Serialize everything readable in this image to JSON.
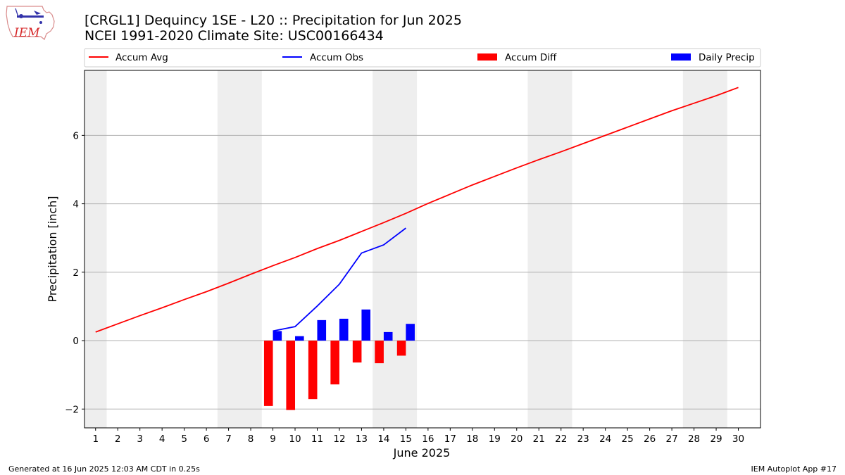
{
  "logo": {
    "text": "IEM",
    "brand_color": "#d62728"
  },
  "title_lines": [
    "[CRGL1] Dequincy 1SE - L20 :: Precipitation for Jun 2025",
    "NCEI 1991-2020 Climate Site: USC00166434"
  ],
  "footer": {
    "left": "Generated at 16 Jun 2025 12:03 AM CDT in 0.25s",
    "right": "IEM Autoplot App #17"
  },
  "chart_data": {
    "type": "bar",
    "title": "[CRGL1] Dequincy 1SE - L20 :: Precipitation for Jun 2025",
    "subtitle": "NCEI 1991-2020 Climate Site: USC00166434",
    "xlabel": "June 2025",
    "ylabel": "Precipitation [inch]",
    "xlim": [
      0.5,
      31.0
    ],
    "ylim": [
      -2.55,
      7.9
    ],
    "yticks": [
      -2,
      0,
      2,
      4,
      6
    ],
    "ytick_labels": [
      "−2",
      "0",
      "2",
      "4",
      "6"
    ],
    "x": [
      1,
      2,
      3,
      4,
      5,
      6,
      7,
      8,
      9,
      10,
      11,
      12,
      13,
      14,
      15,
      16,
      17,
      18,
      19,
      20,
      21,
      22,
      23,
      24,
      25,
      26,
      27,
      28,
      29,
      30
    ],
    "xtick_labels": [
      "1",
      "2",
      "3",
      "4",
      "5",
      "6",
      "7",
      "8",
      "9",
      "10",
      "11",
      "12",
      "13",
      "14",
      "15",
      "16",
      "17",
      "18",
      "19",
      "20",
      "21",
      "22",
      "23",
      "24",
      "25",
      "26",
      "27",
      "28",
      "29",
      "30"
    ],
    "grid": "horizontal",
    "legend_position": "top",
    "weekend_shading": [
      [
        0.5,
        1.5
      ],
      [
        6.5,
        8.5
      ],
      [
        13.5,
        15.5
      ],
      [
        20.5,
        22.5
      ],
      [
        27.5,
        29.5
      ]
    ],
    "series": [
      {
        "name": "Accum Avg",
        "kind": "line",
        "color": "#ff0000",
        "x": [
          1,
          2,
          3,
          4,
          5,
          6,
          7,
          8,
          9,
          10,
          11,
          12,
          13,
          14,
          15,
          16,
          17,
          18,
          19,
          20,
          21,
          22,
          23,
          24,
          25,
          26,
          27,
          28,
          29,
          30
        ],
        "values": [
          0.25,
          0.49,
          0.73,
          0.96,
          1.2,
          1.43,
          1.68,
          1.94,
          2.19,
          2.43,
          2.69,
          2.93,
          3.19,
          3.45,
          3.72,
          4.01,
          4.28,
          4.55,
          4.8,
          5.05,
          5.29,
          5.52,
          5.76,
          6.0,
          6.24,
          6.48,
          6.72,
          6.94,
          7.16,
          7.4
        ]
      },
      {
        "name": "Accum Obs",
        "kind": "line",
        "color": "#0000ff",
        "x": [
          9,
          10,
          11,
          12,
          13,
          14,
          15
        ],
        "values": [
          0.28,
          0.41,
          1.01,
          1.65,
          2.56,
          2.8,
          3.29
        ]
      },
      {
        "name": "Accum Diff",
        "kind": "bar",
        "color": "#ff0000",
        "x": [
          9,
          10,
          11,
          12,
          13,
          14,
          15
        ],
        "values": [
          -1.91,
          -2.03,
          -1.71,
          -1.28,
          -0.64,
          -0.66,
          -0.44
        ]
      },
      {
        "name": "Daily Precip",
        "kind": "bar",
        "color": "#0000ff",
        "x": [
          9,
          10,
          11,
          12,
          13,
          14,
          15
        ],
        "values": [
          0.28,
          0.13,
          0.6,
          0.64,
          0.91,
          0.25,
          0.49
        ]
      }
    ]
  }
}
